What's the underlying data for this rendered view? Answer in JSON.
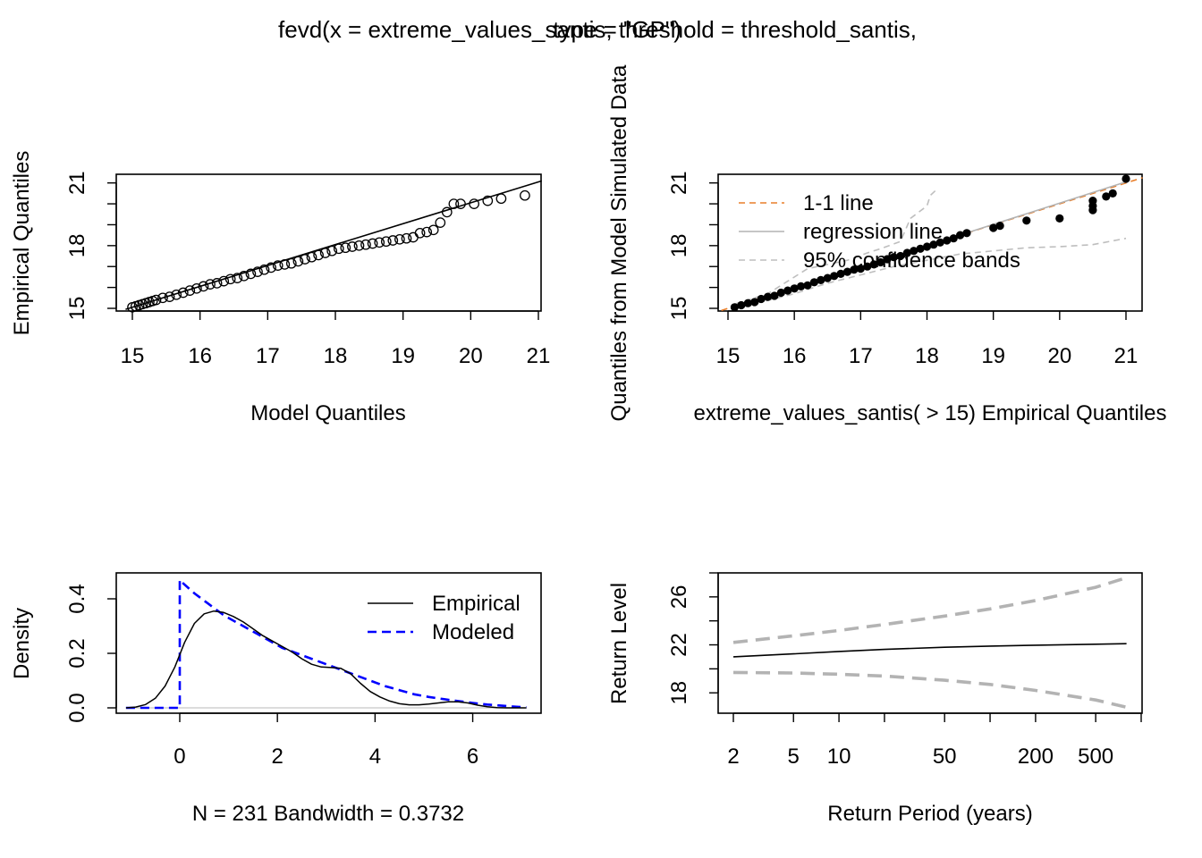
{
  "page": {
    "title_left": "fevd(x = extreme_values_santis, threshold = threshold_santis,",
    "title_right": "type = \"GP\")"
  },
  "colors": {
    "axis": "#000000",
    "one_to_one": "#e87e2a",
    "regression": "#b3b3b3",
    "conf_band": "#bebebe",
    "modeled": "#0000ff",
    "return_ci": "#b3b3b3"
  },
  "chart_data": [
    {
      "type": "scatter",
      "xlabel": "Model Quantiles",
      "ylabel": "Empirical Quantiles",
      "xlim": [
        15,
        21
      ],
      "ylim": [
        15,
        21.2
      ],
      "x_ticks": [
        "15",
        "16",
        "17",
        "18",
        "19",
        "20",
        "21"
      ],
      "y_tick_labels": [
        "15",
        "18",
        "21"
      ],
      "y_minor_ticks": [
        16,
        17,
        19,
        20
      ],
      "reference_line": {
        "from": [
          14.9,
          14.95
        ],
        "to": [
          21.05,
          21.1
        ]
      },
      "points": {
        "x": [
          15.0,
          15.05,
          15.1,
          15.15,
          15.2,
          15.25,
          15.3,
          15.35,
          15.45,
          15.55,
          15.65,
          15.75,
          15.85,
          15.95,
          16.05,
          16.15,
          16.25,
          16.35,
          16.45,
          16.55,
          16.65,
          16.75,
          16.85,
          16.95,
          17.05,
          17.15,
          17.25,
          17.35,
          17.45,
          17.55,
          17.65,
          17.75,
          17.85,
          17.95,
          18.05,
          18.15,
          18.25,
          18.35,
          18.45,
          18.55,
          18.65,
          18.75,
          18.85,
          18.95,
          19.05,
          19.15,
          19.25,
          19.35,
          19.45,
          19.55,
          19.65,
          19.75,
          19.85,
          20.05,
          20.25,
          20.45,
          20.8
        ],
        "y": [
          15.05,
          15.1,
          15.15,
          15.2,
          15.25,
          15.3,
          15.35,
          15.4,
          15.5,
          15.55,
          15.65,
          15.75,
          15.85,
          15.95,
          16.05,
          16.15,
          16.2,
          16.3,
          16.4,
          16.45,
          16.55,
          16.65,
          16.75,
          16.85,
          16.95,
          17.05,
          17.1,
          17.15,
          17.25,
          17.35,
          17.45,
          17.55,
          17.65,
          17.75,
          17.85,
          17.9,
          17.95,
          18.0,
          18.05,
          18.1,
          18.15,
          18.2,
          18.25,
          18.3,
          18.35,
          18.4,
          18.6,
          18.65,
          18.75,
          19.1,
          19.6,
          20.0,
          20.0,
          20.0,
          20.15,
          20.25,
          20.4
        ]
      }
    },
    {
      "type": "scatter",
      "xlabel": "extreme_values_santis( > 15) Empirical Quantiles",
      "ylabel": "Quantiles from Model Simulated Data",
      "xlim": [
        15,
        21
      ],
      "ylim": [
        15,
        21.2
      ],
      "x_ticks": [
        "15",
        "16",
        "17",
        "18",
        "19",
        "20",
        "21"
      ],
      "y_tick_labels": [
        "15",
        "18",
        "21"
      ],
      "y_minor_ticks": [
        16,
        17,
        19,
        20
      ],
      "legend": {
        "placement": "top-left",
        "entries": [
          "1-1 line",
          "regression line",
          "95% confidence bands"
        ]
      },
      "one_to_one_line": {
        "from": [
          14.9,
          14.9
        ],
        "to": [
          21.25,
          21.25
        ]
      },
      "regression_line": {
        "from": [
          15.05,
          15.0
        ],
        "to": [
          21.0,
          21.05
        ]
      },
      "conf_upper": {
        "x": [
          15.1,
          15.6,
          15.9,
          16.2,
          16.8,
          17.1,
          17.3,
          17.6,
          17.75,
          18.0,
          18.05,
          18.15
        ],
        "y": [
          15.2,
          15.7,
          16.3,
          16.9,
          17.3,
          17.65,
          17.85,
          18.2,
          19.3,
          19.9,
          20.4,
          20.7
        ]
      },
      "conf_lower": {
        "x": [
          15.1,
          15.5,
          16.0,
          16.5,
          17.0,
          17.5,
          18.0,
          18.5,
          19.0,
          19.5,
          20.0,
          20.5,
          21.0
        ],
        "y": [
          15.0,
          15.3,
          15.7,
          16.2,
          16.6,
          17.0,
          17.3,
          17.6,
          17.75,
          17.9,
          17.95,
          18.05,
          18.35
        ]
      },
      "points": {
        "x": [
          15.1,
          15.2,
          15.3,
          15.4,
          15.5,
          15.6,
          15.7,
          15.8,
          15.9,
          16.0,
          16.1,
          16.2,
          16.3,
          16.4,
          16.5,
          16.6,
          16.7,
          16.8,
          16.9,
          17.0,
          17.1,
          17.2,
          17.3,
          17.4,
          17.5,
          17.6,
          17.7,
          17.8,
          17.9,
          18.0,
          18.1,
          18.2,
          18.3,
          18.4,
          18.5,
          18.6,
          19.0,
          19.1,
          19.5,
          20.0,
          20.5,
          20.5,
          20.5,
          20.7,
          20.8,
          21.0
        ],
        "y": [
          15.05,
          15.15,
          15.25,
          15.3,
          15.45,
          15.55,
          15.6,
          15.75,
          15.85,
          15.95,
          16.05,
          16.1,
          16.25,
          16.35,
          16.45,
          16.55,
          16.65,
          16.75,
          16.85,
          16.9,
          17.0,
          17.1,
          17.2,
          17.35,
          17.45,
          17.5,
          17.65,
          17.75,
          17.85,
          17.95,
          18.05,
          18.15,
          18.25,
          18.35,
          18.5,
          18.6,
          18.85,
          18.95,
          19.2,
          19.3,
          19.7,
          19.9,
          20.15,
          20.35,
          20.5,
          21.2
        ]
      }
    },
    {
      "type": "line",
      "xlabel": "N = 231   Bandwidth = 0.3732",
      "ylabel": "Density",
      "xlim": [
        -1.3,
        7.4
      ],
      "ylim": [
        -0.01,
        0.5
      ],
      "x_ticks": [
        "0",
        "2",
        "4",
        "6"
      ],
      "y_ticks": [
        "0.0",
        "0.2",
        "0.4"
      ],
      "legend": {
        "placement": "top-right",
        "entries": [
          "Empirical",
          "Modeled"
        ]
      },
      "series": [
        {
          "name": "Empirical",
          "x": [
            -1.1,
            -0.9,
            -0.7,
            -0.5,
            -0.3,
            -0.1,
            0.1,
            0.3,
            0.5,
            0.7,
            0.9,
            1.1,
            1.3,
            1.5,
            1.7,
            1.9,
            2.1,
            2.3,
            2.5,
            2.7,
            2.9,
            3.1,
            3.3,
            3.5,
            3.7,
            3.9,
            4.1,
            4.3,
            4.5,
            4.7,
            4.9,
            5.1,
            5.3,
            5.5,
            5.7,
            5.9,
            6.1,
            6.3,
            6.5,
            6.7,
            6.9,
            7.1
          ],
          "y": [
            0.0,
            0.003,
            0.012,
            0.035,
            0.08,
            0.15,
            0.24,
            0.31,
            0.345,
            0.355,
            0.35,
            0.335,
            0.315,
            0.29,
            0.265,
            0.245,
            0.225,
            0.205,
            0.18,
            0.16,
            0.15,
            0.148,
            0.145,
            0.125,
            0.09,
            0.06,
            0.04,
            0.025,
            0.015,
            0.011,
            0.011,
            0.014,
            0.018,
            0.022,
            0.022,
            0.018,
            0.01,
            0.004,
            0.001,
            0.0,
            0.0,
            0.0
          ]
        },
        {
          "name": "Modeled",
          "x": [
            -1.1,
            0.0,
            0.0,
            0.05,
            0.3,
            0.6,
            0.9,
            1.2,
            1.5,
            1.8,
            2.1,
            2.4,
            2.7,
            3.0,
            3.3,
            3.6,
            3.9,
            4.2,
            4.5,
            4.8,
            5.1,
            5.4,
            5.7,
            6.0,
            6.3,
            6.6,
            6.9,
            7.1
          ],
          "y": [
            0.0,
            0.0,
            0.47,
            0.46,
            0.42,
            0.38,
            0.34,
            0.31,
            0.28,
            0.25,
            0.22,
            0.2,
            0.18,
            0.16,
            0.14,
            0.12,
            0.1,
            0.08,
            0.065,
            0.05,
            0.04,
            0.032,
            0.025,
            0.018,
            0.012,
            0.008,
            0.004,
            0.002
          ]
        }
      ]
    },
    {
      "type": "line",
      "xlabel": "Return Period (years)",
      "ylabel": "Return Level",
      "x_scale": "log",
      "xlim": [
        1.8,
        1000
      ],
      "ylim": [
        16.3,
        28.0
      ],
      "x_ticks": [
        "2",
        "5",
        "10",
        "50",
        "200",
        "500"
      ],
      "x_minor_ticks": [
        20,
        100,
        1000
      ],
      "y_ticks": [
        "18",
        "22",
        "26"
      ],
      "y_minor_ticks": [
        20,
        24,
        28
      ],
      "series": [
        {
          "name": "",
          "x": [
            2,
            5,
            10,
            20,
            50,
            100,
            200,
            500,
            800
          ],
          "y": [
            21.0,
            21.25,
            21.45,
            21.62,
            21.8,
            21.9,
            21.97,
            22.05,
            22.1
          ]
        },
        {
          "name": "",
          "style": "dashed",
          "x": [
            2,
            5,
            10,
            20,
            50,
            100,
            200,
            500,
            800
          ],
          "y": [
            22.2,
            22.75,
            23.2,
            23.7,
            24.4,
            25.0,
            25.7,
            26.8,
            27.6
          ]
        },
        {
          "name": "",
          "style": "dashed",
          "x": [
            2,
            5,
            10,
            20,
            50,
            100,
            200,
            500,
            800
          ],
          "y": [
            19.7,
            19.65,
            19.55,
            19.4,
            19.05,
            18.7,
            18.2,
            17.4,
            16.8
          ]
        }
      ]
    }
  ]
}
